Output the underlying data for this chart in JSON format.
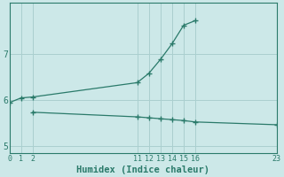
{
  "xlabel": "Humidex (Indice chaleur)",
  "background_color": "#cce8e8",
  "line_color": "#2a7a6a",
  "grid_color": "#aacfcf",
  "line1_x": [
    0,
    1,
    2,
    11,
    12,
    13,
    14,
    15,
    16
  ],
  "line1_y": [
    5.95,
    6.05,
    6.07,
    6.38,
    6.58,
    6.88,
    7.22,
    7.62,
    7.72
  ],
  "line2_x": [
    2,
    11,
    12,
    13,
    14,
    15,
    16,
    23
  ],
  "line2_y": [
    5.74,
    5.64,
    5.62,
    5.6,
    5.58,
    5.56,
    5.53,
    5.47
  ],
  "xticks": [
    0,
    1,
    2,
    11,
    12,
    13,
    14,
    15,
    16,
    23
  ],
  "yticks": [
    5,
    6,
    7
  ],
  "xlim": [
    0,
    23
  ],
  "ylim": [
    4.85,
    8.1
  ],
  "vlines_x": [
    0,
    1,
    2,
    11,
    12,
    13,
    14,
    15,
    16,
    23
  ],
  "hlines_y": [
    5,
    6,
    7
  ],
  "marker_style": "+",
  "marker_size": 4,
  "figwidth": 3.2,
  "figheight": 2.0,
  "dpi": 100
}
